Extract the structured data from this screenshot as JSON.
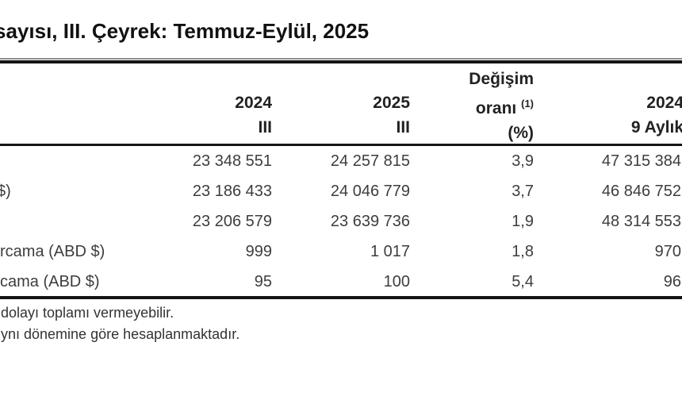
{
  "title": "sayısı, III. Çeyrek: Temmuz-Eylül, 2025",
  "table": {
    "header": {
      "col1": {
        "line1": "2024",
        "line2": "III"
      },
      "col2": {
        "line1": "2025",
        "line2": "III"
      },
      "col3": {
        "line1": "Değişim",
        "line2": "oranı",
        "sup": "(1)",
        "line3": "(%)"
      },
      "col4": {
        "line1": "2024",
        "line2": "9 Aylık"
      }
    },
    "rows": [
      {
        "label": "",
        "q3_2024": "23 348 551",
        "q3_2025": "24 257 815",
        "change": "3,9",
        "nine_month_2024": "47 315 384"
      },
      {
        "label": "$)",
        "q3_2024": "23 186 433",
        "q3_2025": "24 046 779",
        "change": "3,7",
        "nine_month_2024": "46 846 752"
      },
      {
        "label": "",
        "q3_2024": "23 206 579",
        "q3_2025": "23 639 736",
        "change": "1,9",
        "nine_month_2024": "48 314 553"
      },
      {
        "label": "rcama (ABD $)",
        "q3_2024": "999",
        "q3_2025": "1 017",
        "change": "1,8",
        "nine_month_2024": "970"
      },
      {
        "label": "cama (ABD $)",
        "q3_2024": "95",
        "q3_2025": "100",
        "change": "5,4",
        "nine_month_2024": "96"
      }
    ]
  },
  "footnotes": [
    "dolayı toplamı vermeyebilir.",
    "ynı dönemine göre hesaplanmaktadır."
  ],
  "colors": {
    "rule": "#141414",
    "title_text": "#111111",
    "body_text": "#3d3d3d"
  }
}
